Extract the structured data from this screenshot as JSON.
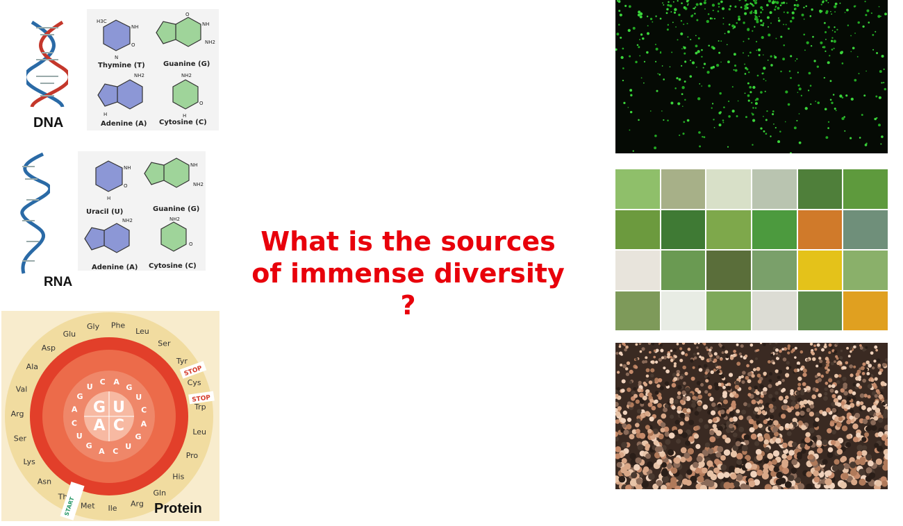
{
  "slide": {
    "title_line1": "What is the sources",
    "title_line2": "of immense diversity",
    "title_line3": "?",
    "title_color": "#e8000b"
  },
  "dna_panel": {
    "label": "DNA",
    "bases": [
      {
        "name": "Thymine (T)",
        "color": "#8c97d6"
      },
      {
        "name": "Guanine (G)",
        "color": "#9fd49a"
      },
      {
        "name": "Adenine (A)",
        "color": "#8c97d6"
      },
      {
        "name": "Cytosine (C)",
        "color": "#9fd49a"
      }
    ],
    "formula_labels": [
      "H3C",
      "NH",
      "NH2",
      "H",
      "N",
      "O"
    ]
  },
  "rna_panel": {
    "label": "RNA",
    "bases": [
      {
        "name": "Uracil (U)",
        "color": "#8c97d6"
      },
      {
        "name": "Guanine (G)",
        "color": "#9fd49a"
      },
      {
        "name": "Adenine (A)",
        "color": "#8c97d6"
      },
      {
        "name": "Cytosine (C)",
        "color": "#9fd49a"
      }
    ]
  },
  "protein_panel": {
    "label": "Protein",
    "center_letters": [
      "G",
      "U",
      "A",
      "C"
    ],
    "inner_ring_letters": [
      "A",
      "G",
      "U",
      "C",
      "A",
      "G",
      "U",
      "C",
      "A",
      "G",
      "U",
      "C",
      "A",
      "G",
      "U",
      "C"
    ],
    "amino_acids": [
      "Gly",
      "Phe",
      "Leu",
      "Ser",
      "Tyr",
      "Cys",
      "Trp",
      "Leu",
      "Pro",
      "His",
      "Gln",
      "Arg",
      "Ile",
      "Met",
      "Thr",
      "Asn",
      "Lys",
      "Ser",
      "Arg",
      "Val",
      "Ala",
      "Asp",
      "Glu"
    ],
    "stop_labels": [
      "STOP",
      "STOP"
    ],
    "start_label": "START"
  },
  "photos": {
    "bacteria": "green fluorescent cells",
    "plants": "plant diversity grid",
    "crowd": "human crowd"
  }
}
